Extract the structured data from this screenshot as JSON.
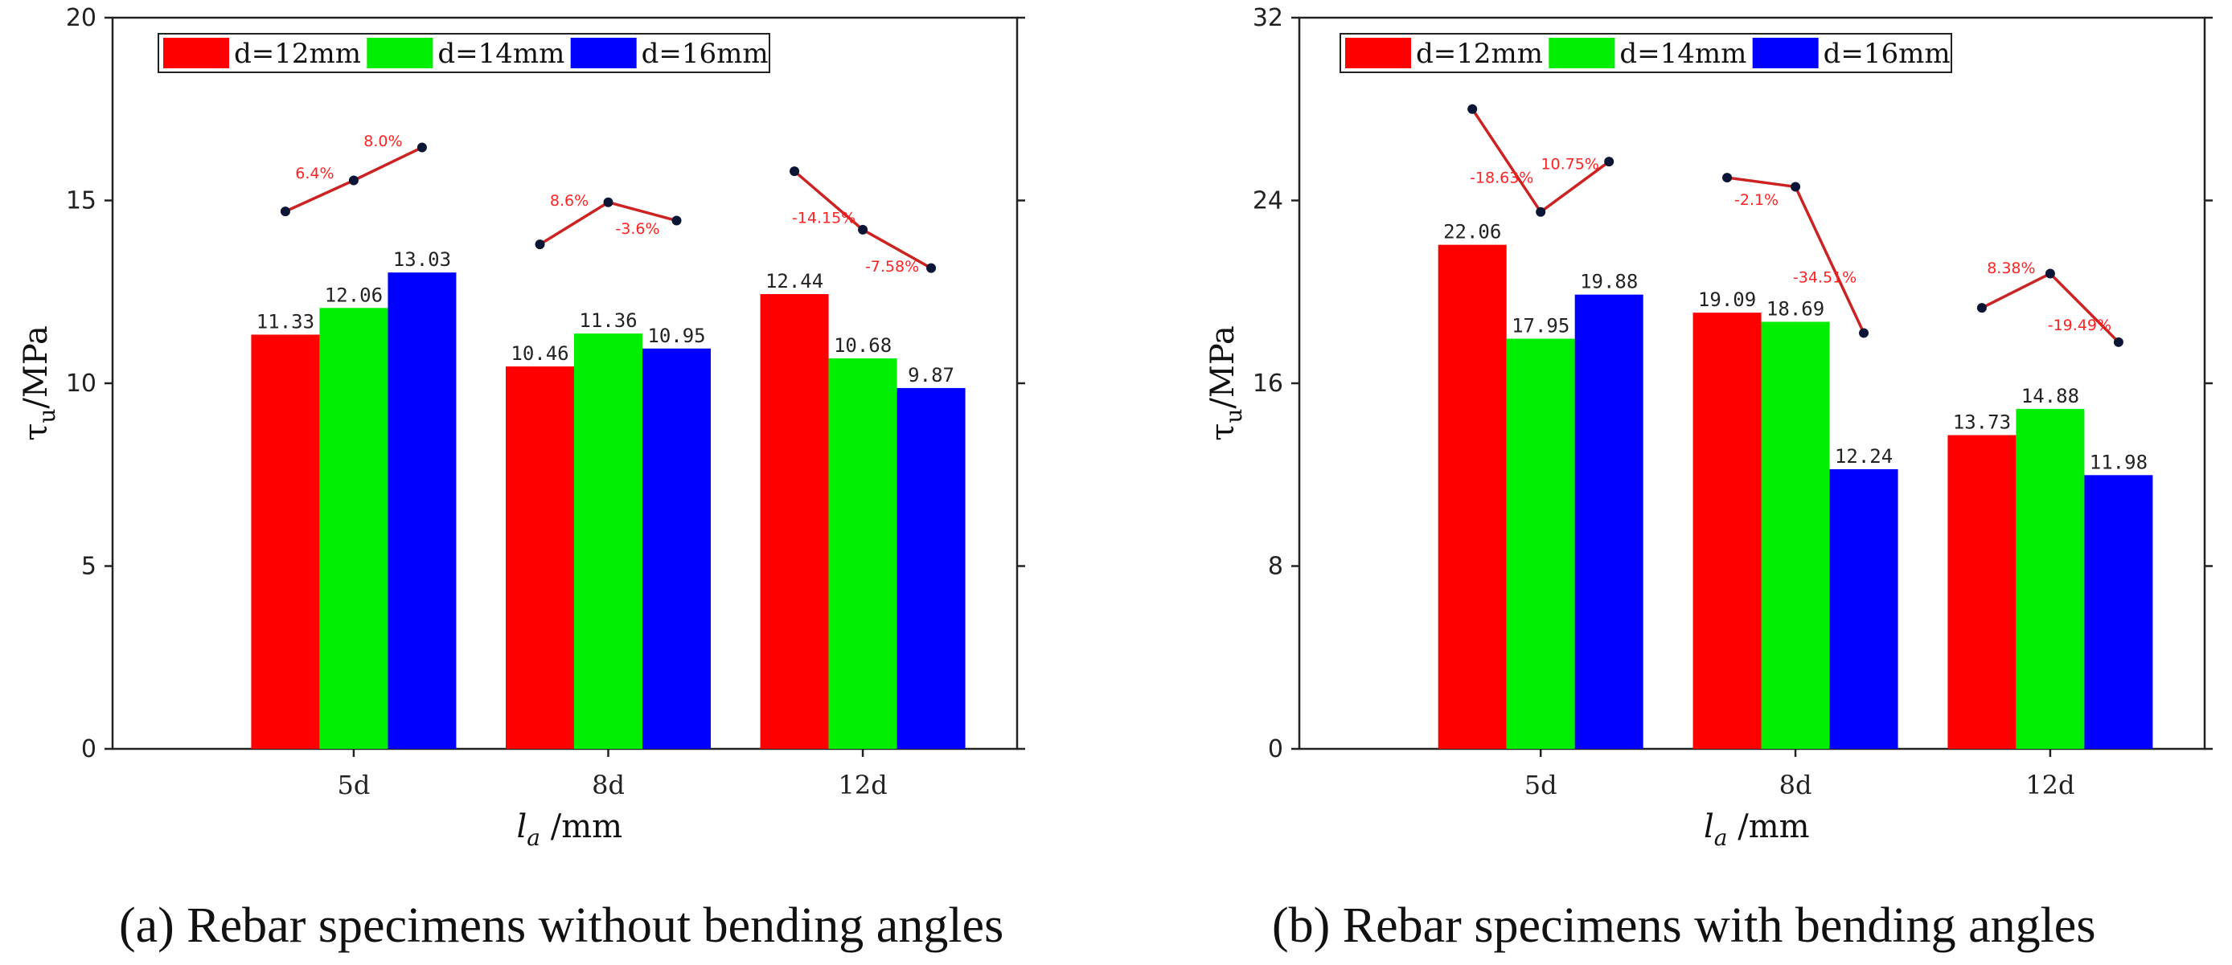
{
  "chart_data": [
    {
      "panel_id": "a",
      "type": "bar",
      "caption": "(a) Rebar specimens without bending angles",
      "xlabel": "l",
      "xlabel_sub": "a",
      "xlabel_suffix": " /mm",
      "ylabel": "τ",
      "ylabel_sub": "u",
      "ylabel_suffix": "/MPa",
      "ylim": [
        0,
        20
      ],
      "yticks": [
        0,
        5,
        10,
        15,
        20
      ],
      "categories": [
        "5d",
        "8d",
        "12d"
      ],
      "series": [
        {
          "name": "d=12mm",
          "color": "#ff0000",
          "values": [
            11.33,
            10.46,
            12.44
          ],
          "labels": [
            "11.33",
            "10.46",
            "12.44"
          ]
        },
        {
          "name": "d=14mm",
          "color": "#00ee00",
          "values": [
            12.06,
            11.36,
            10.68
          ],
          "labels": [
            "12.06",
            "11.36",
            "10.68"
          ]
        },
        {
          "name": "d=16mm",
          "color": "#0000ff",
          "values": [
            13.03,
            10.95,
            9.87
          ],
          "labels": [
            "13.03",
            "10.95",
            "9.87"
          ]
        }
      ],
      "trend_lines": [
        {
          "category": "5d",
          "points": [
            14.7,
            15.55,
            16.45
          ],
          "annotations": [
            "6.4%",
            "8.0%"
          ]
        },
        {
          "category": "8d",
          "points": [
            13.8,
            14.95,
            14.45
          ],
          "annotations": [
            "8.6%",
            "-3.6%"
          ]
        },
        {
          "category": "12d",
          "points": [
            15.8,
            14.2,
            13.15
          ],
          "annotations": [
            "-14.15%",
            "-7.58%"
          ]
        }
      ],
      "legend": "top-left"
    },
    {
      "panel_id": "b",
      "type": "bar",
      "caption": "(b) Rebar specimens with bending angles",
      "xlabel": "l",
      "xlabel_sub": "a",
      "xlabel_suffix": " /mm",
      "ylabel": "τ",
      "ylabel_sub": "u",
      "ylabel_suffix": "/MPa",
      "ylim": [
        0,
        32
      ],
      "yticks": [
        0,
        8,
        16,
        24,
        32
      ],
      "categories": [
        "5d",
        "8d",
        "12d"
      ],
      "series": [
        {
          "name": "d=12mm",
          "color": "#ff0000",
          "values": [
            22.06,
            19.09,
            13.73
          ],
          "labels": [
            "22.06",
            "19.09",
            "13.73"
          ]
        },
        {
          "name": "d=14mm",
          "color": "#00ee00",
          "values": [
            17.95,
            18.69,
            14.88
          ],
          "labels": [
            "17.95",
            "18.69",
            "14.88"
          ]
        },
        {
          "name": "d=16mm",
          "color": "#0000ff",
          "values": [
            19.88,
            12.24,
            11.98
          ],
          "labels": [
            "19.88",
            "12.24",
            "11.98"
          ]
        }
      ],
      "trend_lines": [
        {
          "category": "5d",
          "points": [
            28.0,
            23.5,
            25.7
          ],
          "annotations": [
            "-18.63%",
            "10.75%"
          ]
        },
        {
          "category": "8d",
          "points": [
            25.0,
            24.6,
            18.2
          ],
          "annotations": [
            "-2.1%",
            "-34.51%"
          ]
        },
        {
          "category": "12d",
          "points": [
            19.3,
            20.8,
            17.8
          ],
          "annotations": [
            "8.38%",
            "-19.49%"
          ]
        }
      ],
      "legend": "top-left"
    }
  ]
}
